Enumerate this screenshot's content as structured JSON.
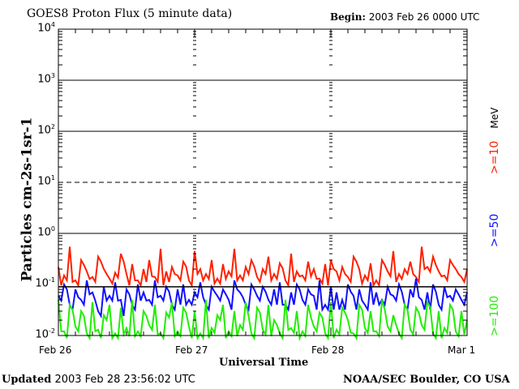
{
  "chart_data": {
    "type": "line",
    "title": "GOES8 Proton Flux (5 minute data)",
    "begin_label": "Begin:",
    "begin_value": "2003 Feb 26 0000 UTC",
    "xlabel": "Universal Time",
    "ylabel": "Particles cm-2s-1sr-1",
    "yscale": "log",
    "ylim": [
      0.01,
      10000
    ],
    "xlim_hours": [
      0,
      72
    ],
    "x_ticks": [
      {
        "hour": 0,
        "label": "Feb 26"
      },
      {
        "hour": 24,
        "label": "Feb 27"
      },
      {
        "hour": 48,
        "label": "Feb 28"
      },
      {
        "hour": 72,
        "label": "Mar 1"
      }
    ],
    "y_ticks": [
      {
        "value": 10000,
        "base": "10",
        "exp": "4"
      },
      {
        "value": 1000,
        "base": "10",
        "exp": "3"
      },
      {
        "value": 100,
        "base": "10",
        "exp": "2"
      },
      {
        "value": 10,
        "base": "10",
        "exp": "1"
      },
      {
        "value": 1,
        "base": "10",
        "exp": "0"
      },
      {
        "value": 0.1,
        "base": "10",
        "exp": "-1"
      },
      {
        "value": 0.01,
        "base": "10",
        "exp": "-2"
      }
    ],
    "threshold_dashed": 10,
    "reference_line": 0.09,
    "series": [
      {
        "name": ">=10 MeV",
        "label": ">=10",
        "unit": "MeV",
        "color": "#ff2000",
        "values": [
          0.22,
          0.15,
          0.55,
          0.12,
          0.3,
          0.18,
          0.14,
          0.35,
          0.2,
          0.13,
          0.17,
          0.4,
          0.16,
          0.25,
          0.12,
          0.2,
          0.3,
          0.14,
          0.5,
          0.18,
          0.22,
          0.15,
          0.28,
          0.12,
          0.45,
          0.2,
          0.16,
          0.3,
          0.13,
          0.25,
          0.18,
          0.5,
          0.15,
          0.22,
          0.3,
          0.14,
          0.2,
          0.35,
          0.16,
          0.26,
          0.12,
          0.4,
          0.18,
          0.15,
          0.28,
          0.2,
          0.13,
          0.25,
          0.3,
          0.18,
          0.22,
          0.14,
          0.35,
          0.2,
          0.15,
          0.26,
          0.12,
          0.3,
          0.18,
          0.45,
          0.16,
          0.2,
          0.28,
          0.14,
          0.55,
          0.22,
          0.35,
          0.18,
          0.15,
          0.3,
          0.2,
          0.14,
          0.2
        ]
      },
      {
        "name": ">=50 MeV",
        "label": ">=50",
        "unit": "",
        "color": "#1010ff",
        "values": [
          0.06,
          0.1,
          0.04,
          0.08,
          0.05,
          0.12,
          0.07,
          0.03,
          0.09,
          0.06,
          0.11,
          0.05,
          0.08,
          0.04,
          0.1,
          0.07,
          0.05,
          0.12,
          0.06,
          0.09,
          0.04,
          0.08,
          0.1,
          0.05,
          0.07,
          0.11,
          0.04,
          0.09,
          0.06,
          0.08,
          0.05,
          0.12,
          0.07,
          0.04,
          0.1,
          0.06,
          0.09,
          0.05,
          0.08,
          0.11,
          0.04,
          0.07,
          0.1,
          0.05,
          0.08,
          0.06,
          0.12,
          0.04,
          0.09,
          0.07,
          0.05,
          0.1,
          0.06,
          0.08,
          0.04,
          0.11,
          0.07,
          0.05,
          0.09,
          0.06,
          0.1,
          0.04,
          0.08,
          0.13,
          0.05,
          0.07,
          0.1,
          0.04,
          0.09,
          0.06,
          0.08,
          0.05,
          0.07
        ]
      },
      {
        "name": ">=100 MeV",
        "label": ">=100",
        "unit": "",
        "color": "#20ee00",
        "values": [
          0.05,
          0.012,
          0.04,
          0.015,
          0.03,
          0.011,
          0.045,
          0.013,
          0.025,
          0.04,
          0.011,
          0.035,
          0.014,
          0.05,
          0.012,
          0.03,
          0.016,
          0.04,
          0.011,
          0.028,
          0.045,
          0.012,
          0.035,
          0.015,
          0.03,
          0.011,
          0.05,
          0.014,
          0.025,
          0.04,
          0.012,
          0.03,
          0.016,
          0.045,
          0.011,
          0.035,
          0.013,
          0.04,
          0.02,
          0.011,
          0.05,
          0.014,
          0.03,
          0.012,
          0.04,
          0.015,
          0.028,
          0.011,
          0.045,
          0.013,
          0.035,
          0.02,
          0.011,
          0.04,
          0.014,
          0.03,
          0.012,
          0.05,
          0.015,
          0.025,
          0.011,
          0.04,
          0.013,
          0.035,
          0.016,
          0.045,
          0.011,
          0.03,
          0.014,
          0.04,
          0.012,
          0.03,
          0.02
        ]
      }
    ]
  },
  "footer": {
    "updated_label": "Updated",
    "updated_value": "2003 Feb 28 23:56:02 UTC",
    "source": "NOAA/SEC Boulder, CO USA"
  }
}
